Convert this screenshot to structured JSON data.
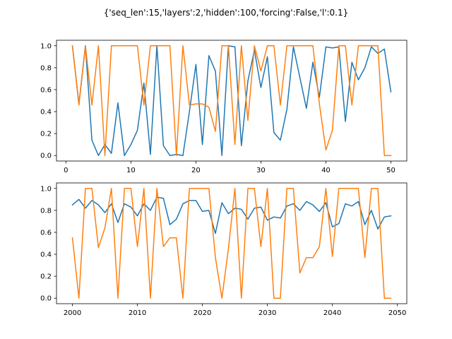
{
  "figure": {
    "title": "{'seq_len':15,'layers':2,'hidden':100,'forcing':False,'l':0.1}"
  },
  "chart_data": [
    {
      "type": "line",
      "title": "",
      "xlabel": "",
      "ylabel": "",
      "xlim": [
        -1.45,
        52.45
      ],
      "ylim": [
        -0.05,
        1.05
      ],
      "xticks": [
        0,
        10,
        20,
        30,
        40,
        50
      ],
      "yticks": [
        0.0,
        0.2,
        0.4,
        0.6,
        0.8,
        1.0
      ],
      "xtick_labels": [
        "0",
        "10",
        "20",
        "30",
        "40",
        "50"
      ],
      "ytick_labels": [
        "0.0",
        "0.2",
        "0.4",
        "0.6",
        "0.8",
        "1.0"
      ],
      "grid": false,
      "x": [
        1,
        2,
        3,
        4,
        5,
        6,
        7,
        8,
        9,
        10,
        11,
        12,
        13,
        14,
        15,
        16,
        17,
        18,
        19,
        20,
        21,
        22,
        23,
        24,
        25,
        26,
        27,
        28,
        29,
        30,
        31,
        32,
        33,
        34,
        35,
        36,
        37,
        38,
        39,
        40,
        41,
        42,
        43,
        44,
        45,
        46,
        47,
        48,
        49,
        50
      ],
      "series": [
        {
          "color": "#1f77b4",
          "values": [
            1.0,
            0.47,
            1.0,
            0.14,
            0.0,
            0.1,
            0.02,
            0.48,
            0.0,
            0.1,
            0.23,
            0.66,
            0.01,
            1.0,
            0.09,
            0.0,
            0.01,
            0.0,
            0.4,
            0.83,
            0.1,
            0.91,
            0.77,
            0.0,
            1.0,
            0.99,
            0.09,
            0.68,
            0.96,
            0.62,
            0.9,
            0.21,
            0.14,
            0.42,
            0.99,
            0.71,
            0.43,
            0.85,
            0.53,
            0.99,
            0.98,
            0.99,
            0.31,
            0.85,
            0.69,
            0.8,
            0.99,
            0.93,
            0.97,
            0.58
          ]
        },
        {
          "color": "#ff7f0e",
          "values": [
            1.0,
            0.46,
            1.0,
            0.46,
            1.0,
            0.0,
            1.0,
            1.0,
            1.0,
            1.0,
            1.0,
            0.46,
            1.0,
            1.0,
            1.0,
            1.0,
            0.0,
            1.0,
            0.46,
            0.47,
            0.47,
            0.44,
            0.22,
            1.0,
            1.0,
            0.1,
            1.0,
            0.32,
            1.0,
            0.77,
            1.0,
            1.0,
            0.46,
            1.0,
            1.0,
            1.0,
            1.0,
            1.0,
            0.47,
            0.05,
            0.23,
            1.0,
            1.0,
            0.46,
            1.0,
            1.0,
            1.0,
            1.0,
            0.0,
            0.0
          ]
        }
      ]
    },
    {
      "type": "line",
      "title": "",
      "xlabel": "",
      "ylabel": "",
      "xlim": [
        1997.55,
        2051.45
      ],
      "ylim": [
        -0.05,
        1.05
      ],
      "xticks": [
        2000,
        2010,
        2020,
        2030,
        2040,
        2050
      ],
      "yticks": [
        0.0,
        0.2,
        0.4,
        0.6,
        0.8,
        1.0
      ],
      "xtick_labels": [
        "2000",
        "2010",
        "2020",
        "2030",
        "2040",
        "2050"
      ],
      "ytick_labels": [
        "0.0",
        "0.2",
        "0.4",
        "0.6",
        "0.8",
        "1.0"
      ],
      "grid": false,
      "x": [
        2000,
        2001,
        2002,
        2003,
        2004,
        2005,
        2006,
        2007,
        2008,
        2009,
        2010,
        2011,
        2012,
        2013,
        2014,
        2015,
        2016,
        2017,
        2018,
        2019,
        2020,
        2021,
        2022,
        2023,
        2024,
        2025,
        2026,
        2027,
        2028,
        2029,
        2030,
        2031,
        2032,
        2033,
        2034,
        2035,
        2036,
        2037,
        2038,
        2039,
        2040,
        2041,
        2042,
        2043,
        2044,
        2045,
        2046,
        2047,
        2048,
        2049
      ],
      "series": [
        {
          "color": "#1f77b4",
          "values": [
            0.85,
            0.9,
            0.82,
            0.89,
            0.85,
            0.78,
            0.86,
            0.69,
            0.86,
            0.83,
            0.75,
            0.86,
            0.8,
            0.92,
            0.91,
            0.67,
            0.72,
            0.86,
            0.89,
            0.89,
            0.79,
            0.8,
            0.59,
            0.87,
            0.77,
            0.82,
            0.81,
            0.72,
            0.82,
            0.83,
            0.71,
            0.74,
            0.73,
            0.84,
            0.86,
            0.8,
            0.88,
            0.85,
            0.79,
            0.87,
            0.65,
            0.68,
            0.86,
            0.84,
            0.88,
            0.67,
            0.8,
            0.63,
            0.74,
            0.75
          ]
        },
        {
          "color": "#ff7f0e",
          "values": [
            0.55,
            0.0,
            1.0,
            1.0,
            0.46,
            0.64,
            1.0,
            0.0,
            1.0,
            1.0,
            0.47,
            1.0,
            0.0,
            1.0,
            0.47,
            0.55,
            0.55,
            0.0,
            1.0,
            1.0,
            1.0,
            1.0,
            0.37,
            0.0,
            0.45,
            1.0,
            0.0,
            1.0,
            1.0,
            0.47,
            1.0,
            0.0,
            0.0,
            1.0,
            1.0,
            0.23,
            0.37,
            0.37,
            0.47,
            1.0,
            0.38,
            1.0,
            1.0,
            1.0,
            1.0,
            0.37,
            1.0,
            1.0,
            0.0,
            0.0
          ]
        }
      ]
    }
  ]
}
